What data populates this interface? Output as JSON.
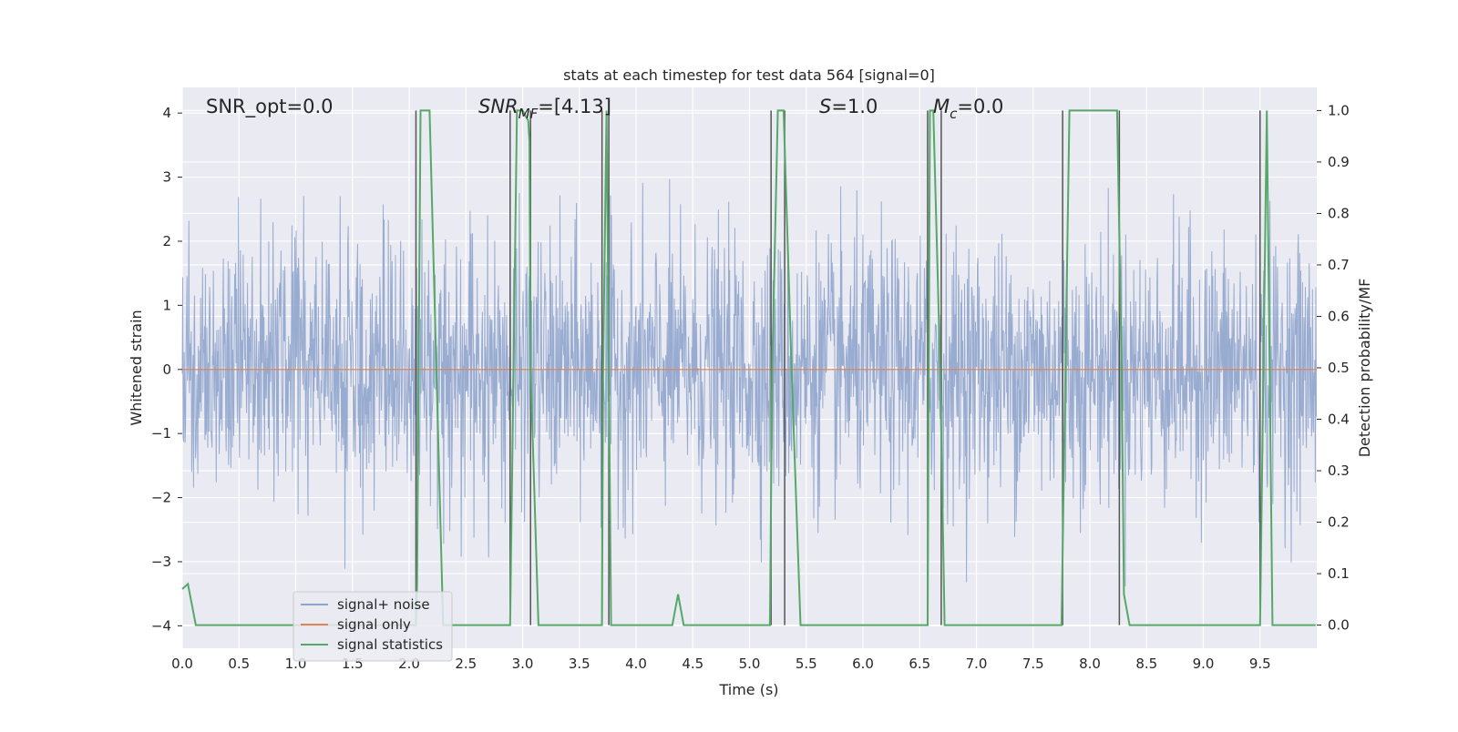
{
  "chart_data": {
    "type": "line",
    "title": "stats at each timestep for test data 564 [signal=0]",
    "xlabel": "Time (s)",
    "ylabel": "Whitened strain",
    "y2label": "Detection probability/MF",
    "xlim": [
      0,
      10
    ],
    "ylim": [
      -4.35,
      4.4
    ],
    "y2lim": [
      -0.045,
      1.045
    ],
    "x_ticks": [
      0.0,
      0.5,
      1.0,
      1.5,
      2.0,
      2.5,
      3.0,
      3.5,
      4.0,
      4.5,
      5.0,
      5.5,
      6.0,
      6.5,
      7.0,
      7.5,
      8.0,
      8.5,
      9.0,
      9.5
    ],
    "x_tick_labels": [
      "0.0",
      "0.5",
      "1.0",
      "1.5",
      "2.0",
      "2.5",
      "3.0",
      "3.5",
      "4.0",
      "4.5",
      "5.0",
      "5.5",
      "6.0",
      "6.5",
      "7.0",
      "7.5",
      "8.0",
      "8.5",
      "9.0",
      "9.5"
    ],
    "y_ticks": [
      4,
      3,
      2,
      1,
      0,
      -1,
      -2,
      -3,
      -4
    ],
    "y_tick_labels": [
      "4",
      "3",
      "2",
      "1",
      "0",
      "−1",
      "−2",
      "−3",
      "−4"
    ],
    "y2_ticks": [
      1.0,
      0.9,
      0.8,
      0.7,
      0.6,
      0.5,
      0.4,
      0.3,
      0.2,
      0.1,
      0.0
    ],
    "y2_tick_labels": [
      "1.0",
      "0.9",
      "0.8",
      "0.7",
      "0.6",
      "0.5",
      "0.4",
      "0.3",
      "0.2",
      "0.1",
      "0.0"
    ],
    "grid": true,
    "legend_position": "lower-left",
    "series": [
      {
        "name": "signal+ noise",
        "color": "#8fa4cc",
        "description_values": "whitened Gaussian noise, typical envelope ~[-2.6, 2.8], peaks to about ±3.8",
        "noise_amplitude": 1.0
      },
      {
        "name": "signal only",
        "color": "#dd8452",
        "values_constant": 0.0
      },
      {
        "name": "signal statistics",
        "color": "#55a868",
        "x": [
          0.0,
          0.05,
          0.12,
          2.06,
          2.07,
          2.1,
          2.18,
          2.3,
          2.89,
          2.95,
          3.0,
          3.05,
          3.06,
          3.07,
          3.14,
          3.7,
          3.71,
          3.74,
          3.78,
          3.84,
          4.32,
          4.37,
          4.42,
          5.18,
          5.2,
          5.25,
          5.3,
          5.37,
          5.45,
          6.57,
          6.59,
          6.62,
          6.68,
          6.72,
          7.75,
          7.82,
          8.24,
          8.28,
          8.3,
          8.35,
          9.5,
          9.56,
          9.61,
          9.99
        ],
        "values": [
          0.07,
          0.08,
          0.0,
          0.0,
          0.08,
          1.0,
          1.0,
          0.0,
          0.0,
          1.0,
          1.0,
          0.98,
          0.94,
          0.5,
          0.0,
          0.0,
          0.5,
          1.0,
          0.0,
          0.0,
          0.0,
          0.06,
          0.0,
          0.0,
          0.5,
          1.0,
          1.0,
          0.5,
          0.0,
          0.0,
          1.0,
          1.0,
          0.5,
          0.0,
          0.0,
          1.0,
          1.0,
          0.5,
          0.06,
          0.0,
          0.0,
          1.0,
          0.0,
          0.0
        ]
      }
    ],
    "vertical_lines": {
      "color": "#555555",
      "x": [
        2.06,
        2.89,
        3.07,
        3.7,
        3.76,
        5.19,
        5.31,
        6.57,
        6.69,
        7.76,
        8.26,
        9.5
      ]
    },
    "annotations": [
      {
        "id": "snr-opt",
        "text": "SNR_opt=0.0"
      },
      {
        "id": "snr-mf",
        "text": "SNR_MF=[4.13]",
        "main": "SNR",
        "sub": "MF",
        "tail": "=[4.13]"
      },
      {
        "id": "s-stat",
        "text": "S=1.0",
        "main": "S",
        "tail": "=1.0"
      },
      {
        "id": "mc",
        "text": "M_c=0.0",
        "main": "M",
        "sub": "c",
        "tail": "=0.0"
      }
    ],
    "legend": [
      "signal+ noise",
      "signal only",
      "signal statistics"
    ]
  }
}
